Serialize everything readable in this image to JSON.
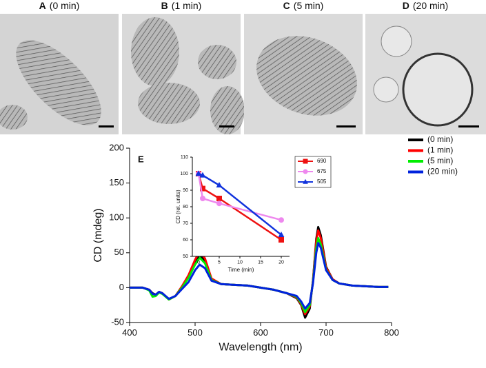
{
  "panels": [
    {
      "letter": "A",
      "label": "(0 min)"
    },
    {
      "letter": "B",
      "label": "(1 min)"
    },
    {
      "letter": "C",
      "label": "(5 min)"
    },
    {
      "letter": "D",
      "label": "(20 min)"
    }
  ],
  "chart_data": [
    {
      "type": "line",
      "panel": "E",
      "xlabel": "Wavelength (nm)",
      "ylabel": "CD (mdeg)",
      "x": [
        400,
        410,
        420,
        430,
        435,
        440,
        445,
        450,
        460,
        470,
        480,
        490,
        500,
        507,
        515,
        525,
        540,
        560,
        580,
        600,
        620,
        640,
        655,
        662,
        668,
        675,
        680,
        685,
        688,
        692,
        700,
        710,
        720,
        740,
        760,
        780,
        795
      ],
      "xlim": [
        400,
        800
      ],
      "xticks": [
        400,
        500,
        600,
        700,
        800
      ],
      "ylim": [
        -50,
        200
      ],
      "yticks": [
        -50,
        0,
        50,
        100,
        150,
        200
      ],
      "legend": "upper right",
      "series": [
        {
          "name": "(0 min)",
          "color": "#000000",
          "values": [
            0,
            0,
            0,
            -3,
            -8,
            -10,
            -6,
            -8,
            -17,
            -12,
            0,
            15,
            35,
            47,
            38,
            12,
            5,
            4,
            3,
            0,
            -3,
            -8,
            -15,
            -25,
            -43,
            -30,
            10,
            70,
            87,
            75,
            30,
            12,
            6,
            3,
            2,
            1,
            1
          ]
        },
        {
          "name": "(1 min)",
          "color": "#ff0000",
          "values": [
            0,
            0,
            0,
            -3,
            -9,
            -11,
            -6,
            -8,
            -17,
            -12,
            2,
            18,
            40,
            52,
            42,
            13,
            5,
            4,
            3,
            0,
            -3,
            -8,
            -14,
            -24,
            -38,
            -27,
            10,
            66,
            82,
            71,
            29,
            12,
            6,
            3,
            2,
            1,
            1
          ]
        },
        {
          "name": "(5 min)",
          "color": "#00ee00",
          "values": [
            0,
            0,
            0,
            -4,
            -13,
            -12,
            -7,
            -9,
            -17,
            -12,
            0,
            14,
            33,
            43,
            35,
            11,
            5,
            4,
            3,
            0,
            -3,
            -8,
            -13,
            -22,
            -35,
            -25,
            8,
            57,
            71,
            62,
            26,
            11,
            6,
            3,
            2,
            1,
            1
          ]
        },
        {
          "name": "(20 min)",
          "color": "#0022dd",
          "values": [
            0,
            0,
            0,
            -3,
            -9,
            -10,
            -6,
            -8,
            -16,
            -12,
            -2,
            8,
            25,
            33,
            28,
            10,
            5,
            4,
            3,
            0,
            -3,
            -8,
            -12,
            -20,
            -30,
            -22,
            6,
            50,
            64,
            57,
            25,
            11,
            6,
            3,
            2,
            1,
            1
          ]
        }
      ]
    },
    {
      "type": "line",
      "xlabel": "Time (min)",
      "ylabel": "CD (rel. units)",
      "x": [
        0,
        1,
        5,
        20
      ],
      "xlim": [
        -1.5,
        22
      ],
      "xticks": [
        0,
        5,
        10,
        15,
        20
      ],
      "ylim": [
        50,
        110
      ],
      "yticks": [
        50,
        60,
        70,
        80,
        90,
        100,
        110
      ],
      "legend": "upper right",
      "series": [
        {
          "name": "690",
          "color": "#ee1111",
          "marker": "square",
          "values": [
            100,
            91,
            85,
            60
          ]
        },
        {
          "name": "675",
          "color": "#ee88ee",
          "marker": "circle",
          "values": [
            100,
            85,
            82,
            72
          ]
        },
        {
          "name": "505",
          "color": "#1133dd",
          "marker": "triangle",
          "values": [
            100,
            99,
            93,
            63
          ]
        }
      ]
    }
  ]
}
